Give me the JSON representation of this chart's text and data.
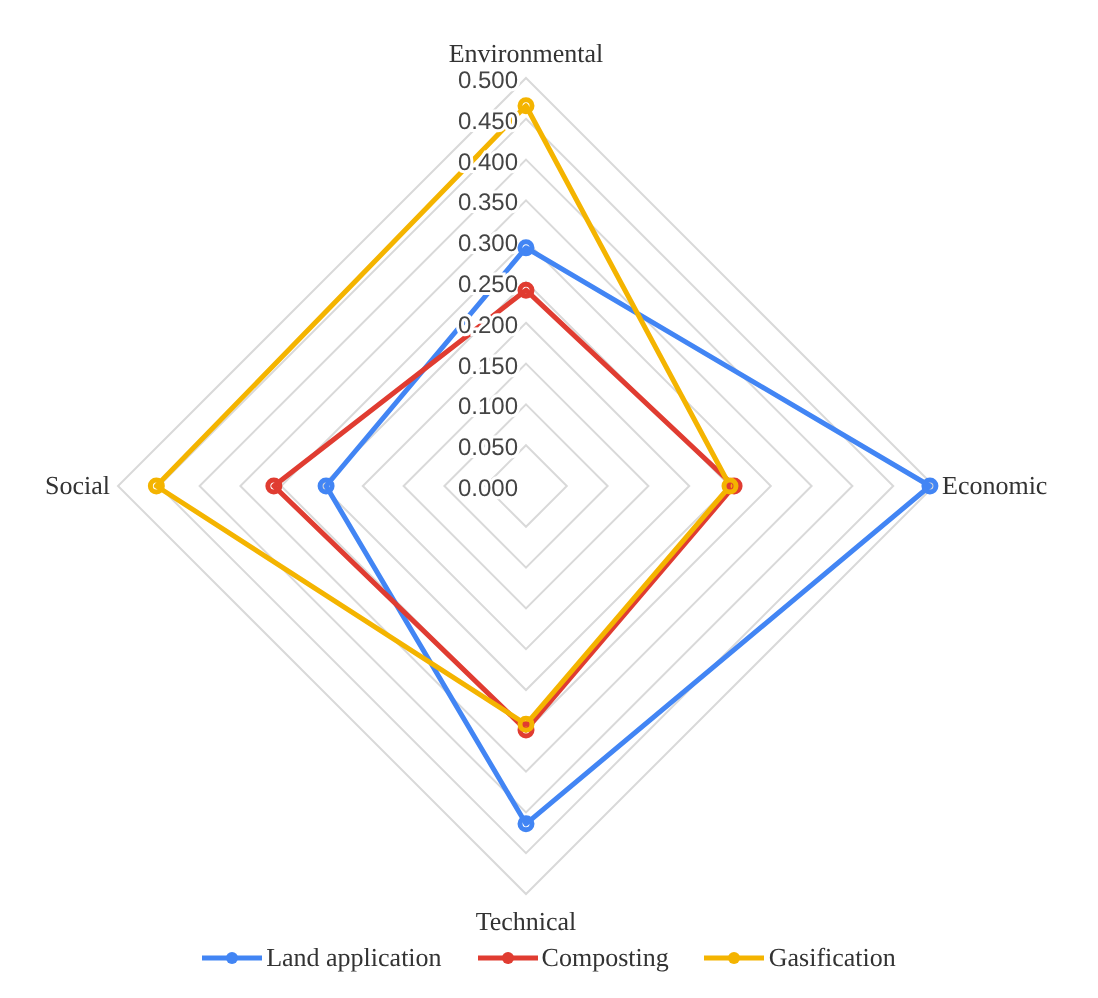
{
  "chart_data": {
    "type": "radar",
    "categories": [
      "Environmental",
      "Economic",
      "Technical",
      "Social"
    ],
    "series": [
      {
        "name": "Land application",
        "color": "#4285f4",
        "values": [
          0.292,
          0.495,
          0.414,
          0.245
        ]
      },
      {
        "name": "Composting",
        "color": "#e03c31",
        "values": [
          0.24,
          0.255,
          0.299,
          0.309
        ]
      },
      {
        "name": "Gasification",
        "color": "#f4b400",
        "values": [
          0.466,
          0.25,
          0.292,
          0.453
        ]
      }
    ],
    "ylim": [
      0,
      0.5
    ],
    "yticks": [
      {
        "value": 0,
        "label": "0.000"
      },
      {
        "value": 0.05,
        "label": "0.050"
      },
      {
        "value": 0.1,
        "label": "0.100"
      },
      {
        "value": 0.15,
        "label": "0.150"
      },
      {
        "value": 0.2,
        "label": "0.200"
      },
      {
        "value": 0.25,
        "label": "0.250"
      },
      {
        "value": 0.3,
        "label": "0.300"
      },
      {
        "value": 0.35,
        "label": "0.350"
      },
      {
        "value": 0.4,
        "label": "0.400"
      },
      {
        "value": 0.45,
        "label": "0.450"
      },
      {
        "value": 0.5,
        "label": "0.500"
      }
    ],
    "grid": true,
    "legend": "bottom",
    "marker": "circle",
    "line_style": "solid"
  }
}
